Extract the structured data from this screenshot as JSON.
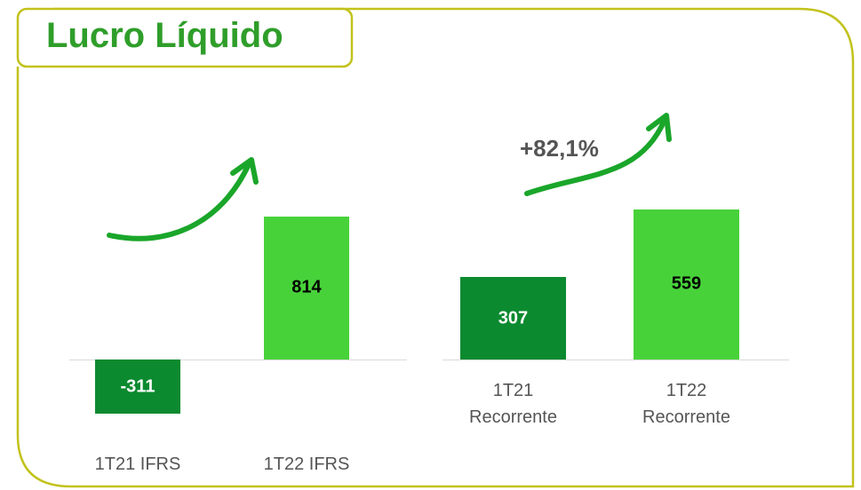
{
  "title": "Lucro Líquido",
  "chart_data": [
    {
      "type": "bar",
      "categories": [
        "1T21 IFRS",
        "1T22 IFRS"
      ],
      "values": [
        -311,
        814
      ],
      "colors": [
        "#0b8a2f",
        "#48d23a"
      ],
      "label_colors": [
        "#ffffff",
        "#000000"
      ],
      "ylim": [
        -330,
        1240
      ]
    },
    {
      "type": "bar",
      "categories": [
        "1T21 Recorrente",
        "1T22 Recorrente"
      ],
      "values": [
        307,
        559
      ],
      "colors": [
        "#0b8a2f",
        "#48d23a"
      ],
      "label_colors": [
        "#ffffff",
        "#000000"
      ],
      "ylim": [
        0,
        810
      ],
      "annotation": "+82,1%"
    }
  ]
}
